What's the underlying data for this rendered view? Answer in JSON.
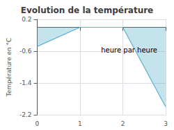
{
  "chart_data": {
    "type": "line",
    "title": "Evolution de la température",
    "ylabel": "Température en °C",
    "annotations": [
      "heure par heure"
    ],
    "x": [
      0,
      1,
      2,
      3
    ],
    "series": [
      {
        "name": "Température",
        "color": "#5ab0cc",
        "values": [
          -0.48,
          0.0,
          0.0,
          -2.0
        ]
      }
    ],
    "xlim": [
      0,
      3
    ],
    "xticks": [
      0,
      1,
      2,
      3
    ],
    "ylim": [
      -2.2,
      0.2
    ],
    "yticks": [
      0.2,
      -0.6,
      -1.4,
      -2.2
    ],
    "grid": true
  }
}
